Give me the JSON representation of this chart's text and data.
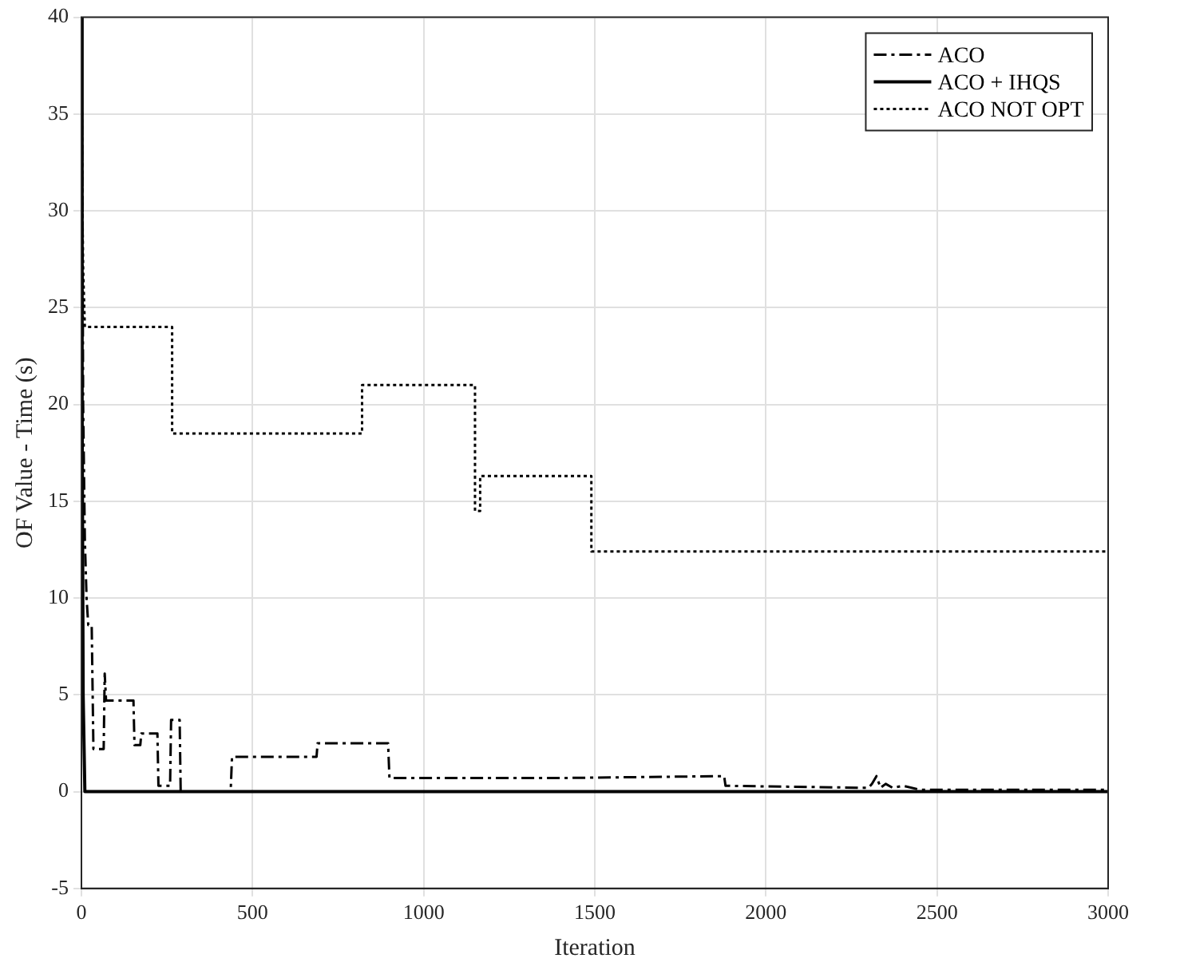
{
  "chart_data": {
    "type": "line",
    "xlabel": "Iteration",
    "ylabel": "OF Value - Time (s)",
    "xlim": [
      0,
      3000
    ],
    "xticks": [
      0,
      500,
      1000,
      1500,
      2000,
      2500,
      3000
    ],
    "ylim": [
      -5,
      40
    ],
    "yticks": [
      -5,
      0,
      5,
      10,
      15,
      20,
      25,
      30,
      35,
      40
    ],
    "grid": true,
    "legend": "top right",
    "marker": "none",
    "series": [
      {
        "name": "ACO",
        "color": "#000000",
        "line_style": "dashed",
        "x": [
          0,
          3,
          5,
          10,
          15,
          20,
          30,
          35,
          65,
          68,
          72,
          152,
          155,
          172,
          175,
          222,
          225,
          259,
          262,
          287,
          290,
          436,
          440,
          687,
          690,
          896,
          900,
          1384,
          1878,
          1882,
          2280,
          2300,
          2310,
          2323,
          2335,
          2350,
          2370,
          2400,
          2450,
          2490,
          3000
        ],
        "values": [
          40,
          30,
          20,
          13,
          10,
          8.6,
          8.6,
          2.2,
          2.2,
          6.1,
          4.7,
          4.7,
          2.4,
          2.4,
          3.0,
          3.0,
          0.3,
          0.3,
          3.7,
          3.7,
          0,
          0,
          1.8,
          1.8,
          2.5,
          2.5,
          0.7,
          0.7,
          0.8,
          0.3,
          0.2,
          0.2,
          0.4,
          0.8,
          0.2,
          0.4,
          0.2,
          0.3,
          0.1,
          0.1,
          0.1
        ]
      },
      {
        "name": "ACO + IHQS",
        "color": "#000000",
        "line_style": "solid",
        "x": [
          0,
          2,
          5,
          10,
          3000
        ],
        "values": [
          40,
          20,
          5,
          0,
          0
        ]
      },
      {
        "name": "ACO NOT OPT",
        "color": "#000000",
        "line_style": "dotted",
        "x": [
          0,
          3,
          5,
          10,
          265,
          265,
          820,
          820,
          1150,
          1150,
          1165,
          1165,
          1490,
          1490,
          3000
        ],
        "values": [
          40,
          30,
          27,
          24,
          24,
          18.5,
          18.5,
          21,
          21,
          14.5,
          14.5,
          16.3,
          16.3,
          12.4,
          12.4
        ]
      }
    ]
  }
}
